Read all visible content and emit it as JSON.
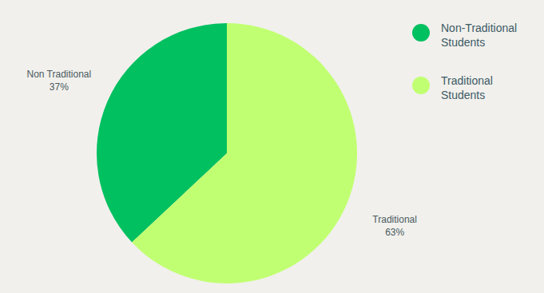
{
  "chart_data": {
    "type": "pie",
    "categories": [
      "Non-Traditional Students",
      "Traditional Students"
    ],
    "slice_labels": [
      "Non Traditional",
      "Traditional"
    ],
    "values": [
      37,
      63
    ],
    "value_labels": [
      "37%",
      "63%"
    ],
    "colors": [
      "#00c060",
      "#c1ff72"
    ],
    "data_labels": true,
    "legend": "right"
  }
}
